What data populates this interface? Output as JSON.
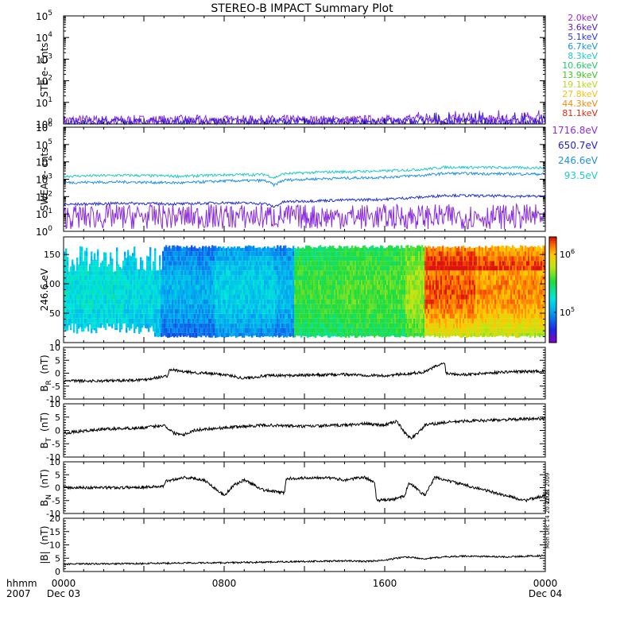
{
  "title": "STEREO-B IMPACT Summary Plot",
  "stamp": {
    "line1": "Mon Dec 14 20:42:21 2009",
    "line2": "2008"
  },
  "x_axis": {
    "label_line1": "hhmm",
    "label_line2": "2007",
    "range_hours": [
      0,
      24
    ],
    "ticks": [
      {
        "hour": 0,
        "time": "0000",
        "date": "Dec 03"
      },
      {
        "hour": 8,
        "time": "0800",
        "date": ""
      },
      {
        "hour": 16,
        "time": "1600",
        "date": ""
      },
      {
        "hour": 24,
        "time": "0000",
        "date": "Dec 04"
      }
    ]
  },
  "legends": {
    "ste": [
      {
        "label": "2.0keV",
        "color": "#9b2bd6"
      },
      {
        "label": "3.6keV",
        "color": "#5a20c8"
      },
      {
        "label": "5.1keV",
        "color": "#2a3ae0"
      },
      {
        "label": "6.7keV",
        "color": "#1f8fe0"
      },
      {
        "label": "8.3keV",
        "color": "#22c8c8"
      },
      {
        "label": "10.6keV",
        "color": "#22c86a"
      },
      {
        "label": "13.9keV",
        "color": "#44c222"
      },
      {
        "label": "19.1keV",
        "color": "#b6d81e"
      },
      {
        "label": "27.8keV",
        "color": "#f2c21a"
      },
      {
        "label": "44.3keV",
        "color": "#f08a14"
      },
      {
        "label": "81.1keV",
        "color": "#e02a14"
      }
    ],
    "swea": [
      {
        "label": "1716.8eV",
        "color": "#8a2ee0"
      },
      {
        "label": "650.7eV",
        "color": "#2020d8"
      },
      {
        "label": "246.6eV",
        "color": "#2090e8"
      },
      {
        "label": "93.5eV",
        "color": "#22c8c8"
      }
    ]
  },
  "chart_data": [
    {
      "type": "line",
      "id": "ste",
      "ylabel": "STE e- Cnts",
      "yscale": "log",
      "ylim": [
        1,
        100000
      ],
      "ytick_labels": [
        {
          "value": 1,
          "base": "10",
          "exp": "0"
        },
        {
          "value": 10,
          "base": "10",
          "exp": "1"
        },
        {
          "value": 100,
          "base": "10",
          "exp": "2"
        },
        {
          "value": 1000,
          "base": "10",
          "exp": "3"
        },
        {
          "value": 10000,
          "base": "10",
          "exp": "4"
        },
        {
          "value": 100000,
          "base": "10",
          "exp": "5"
        }
      ],
      "series": [
        {
          "name": "2.0keV",
          "color": "#8a2be2",
          "level": 1.3,
          "spread": 0.5
        },
        {
          "name": "3.6keV",
          "color": "#3a20d0",
          "level": 1.2,
          "spread": 0.35
        }
      ]
    },
    {
      "type": "line",
      "id": "swea",
      "ylabel": "SWEA e- cnts",
      "yscale": "log",
      "ylim": [
        1,
        1000000
      ],
      "ytick_labels": [
        {
          "value": 1,
          "base": "10",
          "exp": "0"
        },
        {
          "value": 10,
          "base": "10",
          "exp": "1"
        },
        {
          "value": 100,
          "base": "10",
          "exp": "2"
        },
        {
          "value": 1000,
          "base": "10",
          "exp": "3"
        },
        {
          "value": 10000,
          "base": "10",
          "exp": "4"
        },
        {
          "value": 100000,
          "base": "10",
          "exp": "5"
        },
        {
          "value": 1000000,
          "base": "10",
          "exp": "6"
        }
      ],
      "series": [
        {
          "name": "93.5eV",
          "color": "#22c8c8",
          "hours": [
            0,
            3,
            6,
            8,
            10,
            10.5,
            11,
            13,
            16,
            18,
            19,
            21,
            24
          ],
          "values": [
            1500,
            1700,
            1500,
            1800,
            1900,
            1200,
            2100,
            2600,
            3000,
            3800,
            5000,
            4800,
            4600
          ]
        },
        {
          "name": "246.6eV",
          "color": "#2090e8",
          "hours": [
            0,
            3,
            6,
            8,
            10,
            10.5,
            11,
            13,
            16,
            18,
            19,
            21,
            24
          ],
          "values": [
            650,
            700,
            620,
            800,
            850,
            450,
            900,
            1100,
            1300,
            1700,
            2200,
            2100,
            2000
          ]
        },
        {
          "name": "650.7eV",
          "color": "#2030d8",
          "hours": [
            0,
            3,
            6,
            8,
            10,
            10.5,
            11,
            13,
            16,
            18,
            19,
            21,
            24
          ],
          "values": [
            35,
            42,
            38,
            45,
            40,
            25,
            50,
            60,
            70,
            95,
            120,
            110,
            105
          ]
        },
        {
          "name": "1716.8eV",
          "color": "#8a2be2",
          "level": 5,
          "spread": 0.9
        }
      ]
    },
    {
      "type": "heatmap",
      "id": "pitch",
      "ylabel": "246.6 eV",
      "ylim": [
        0,
        180
      ],
      "yticks": [
        0,
        50,
        100,
        150
      ],
      "colorbar": {
        "scale": "log",
        "range": [
          30000,
          2000000
        ],
        "tick_labels": [
          {
            "value": 100000,
            "base": "10",
            "exp": "5"
          },
          {
            "value": 1000000,
            "base": "10",
            "exp": "6"
          }
        ]
      },
      "regions": [
        {
          "h0": 0,
          "h1": 3,
          "lo": 0.28,
          "hi": 0.42
        },
        {
          "h0": 3,
          "h1": 4.8,
          "lo": 0.25,
          "hi": 0.4
        },
        {
          "h0": 4.8,
          "h1": 7.5,
          "lo": 0.08,
          "hi": 0.32
        },
        {
          "h0": 7.5,
          "h1": 10.5,
          "lo": 0.15,
          "hi": 0.38
        },
        {
          "h0": 10.5,
          "h1": 11.5,
          "lo": 0.12,
          "hi": 0.34
        },
        {
          "h0": 11.5,
          "h1": 14,
          "lo": 0.45,
          "hi": 0.6
        },
        {
          "h0": 14,
          "h1": 17,
          "lo": 0.48,
          "hi": 0.62
        },
        {
          "h0": 17,
          "h1": 18,
          "lo": 0.5,
          "hi": 0.7
        },
        {
          "h0": 18,
          "h1": 20.5,
          "lo": 0.55,
          "hi": 0.95
        },
        {
          "h0": 20.5,
          "h1": 24,
          "lo": 0.55,
          "hi": 0.9
        }
      ]
    },
    {
      "type": "line",
      "id": "br",
      "ylabel": "B",
      "ylabel_sub": "R",
      "yunit": "(nT)",
      "ylim": [
        -10,
        10
      ],
      "yticks": [
        -10,
        -5,
        0,
        5,
        10
      ],
      "hours": [
        0,
        2,
        4,
        5.2,
        5.3,
        6,
        8,
        9,
        10,
        12,
        14,
        16,
        17,
        18,
        18.5,
        19,
        19.05,
        20,
        22,
        24
      ],
      "values": [
        -3,
        -3,
        -2.5,
        -1,
        1.5,
        0.5,
        -0.5,
        -2,
        -1,
        -0.8,
        -0.5,
        -1,
        -0.3,
        0.5,
        2.5,
        4,
        0,
        -0.5,
        0.5,
        0.8
      ]
    },
    {
      "type": "line",
      "id": "bt",
      "ylabel": "B",
      "ylabel_sub": "T",
      "yunit": "(nT)",
      "ylim": [
        -10,
        10
      ],
      "yticks": [
        -10,
        -5,
        0,
        5,
        10
      ],
      "hours": [
        0,
        2,
        4,
        5,
        5.5,
        6,
        6.5,
        7,
        8,
        10,
        12,
        14,
        15,
        16,
        16.6,
        17,
        17.3,
        17.8,
        18,
        19,
        20,
        22,
        24
      ],
      "values": [
        -1,
        0.5,
        1,
        2,
        -1,
        -1.5,
        0,
        0.5,
        1,
        2,
        1.5,
        2,
        2.5,
        2,
        3.5,
        -1,
        -3,
        0,
        2,
        3,
        3.5,
        4,
        4.5
      ]
    },
    {
      "type": "line",
      "id": "bn",
      "ylabel": "B",
      "ylabel_sub": "N",
      "yunit": "(nT)",
      "ylim": [
        -10,
        10
      ],
      "yticks": [
        -10,
        -5,
        0,
        5,
        10
      ],
      "hours": [
        0,
        3,
        5,
        5.1,
        6,
        7,
        8,
        8.5,
        9,
        10,
        11,
        11.1,
        13,
        14,
        15,
        15.5,
        15.6,
        16.5,
        17,
        17.2,
        18,
        18.5,
        19.5,
        21,
        22,
        23,
        24
      ],
      "values": [
        0,
        0,
        0.5,
        2.5,
        4,
        3,
        -3,
        1,
        3,
        -1,
        -2,
        3.5,
        4,
        3,
        4,
        2,
        -5,
        -4.5,
        -3,
        2,
        -3,
        4,
        2,
        -1,
        -3,
        -5,
        -3
      ]
    },
    {
      "type": "line",
      "id": "bmag",
      "ylabel": "|B|",
      "yunit": "(nT)",
      "ylim": [
        0,
        20
      ],
      "yticks": [
        0,
        5,
        10,
        15,
        20
      ],
      "hours": [
        0,
        4,
        6,
        8,
        10,
        12,
        14,
        15,
        16,
        17,
        18,
        19,
        20,
        22,
        24
      ],
      "values": [
        2.8,
        3,
        3.2,
        3.3,
        3.5,
        3.8,
        4,
        3.8,
        4.2,
        5.5,
        4.8,
        5.5,
        5.8,
        5.5,
        6
      ]
    }
  ]
}
